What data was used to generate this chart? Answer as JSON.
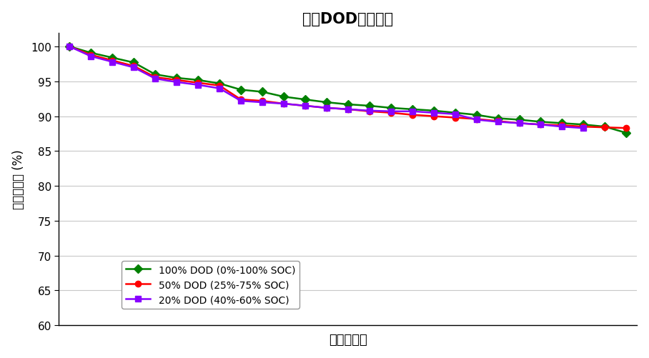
{
  "title": "不同DOD常温循环",
  "xlabel": "总能量输出",
  "ylabel": "容量保持率 (%)",
  "ylim": [
    60,
    102
  ],
  "yticks": [
    60,
    65,
    70,
    75,
    80,
    85,
    90,
    95,
    100
  ],
  "background_color": "#ffffff",
  "grid_color": "#c8c8c8",
  "series": [
    {
      "label": "100% DOD (0%-100% SOC)",
      "color": "#008000",
      "marker": "D",
      "markersize": 6,
      "x": [
        0,
        1,
        2,
        3,
        4,
        5,
        6,
        7,
        8,
        9,
        10,
        11,
        12,
        13,
        14,
        15,
        16,
        17,
        18,
        19,
        20,
        21,
        22,
        23,
        24,
        25,
        26
      ],
      "y": [
        100,
        99.1,
        98.4,
        97.7,
        96.0,
        95.5,
        95.2,
        94.7,
        93.8,
        93.5,
        92.8,
        92.4,
        92.0,
        91.7,
        91.5,
        91.2,
        91.0,
        90.8,
        90.5,
        90.2,
        89.7,
        89.5,
        89.2,
        89.0,
        88.8,
        88.5,
        87.6
      ]
    },
    {
      "label": "50% DOD (25%-75% SOC)",
      "color": "#ff0000",
      "marker": "o",
      "markersize": 6,
      "x": [
        0,
        1,
        2,
        3,
        4,
        5,
        6,
        7,
        8,
        9,
        10,
        11,
        12,
        13,
        14,
        15,
        16,
        17,
        18,
        19,
        20,
        21,
        22,
        23,
        24,
        25,
        26
      ],
      "y": [
        100,
        98.8,
        98.0,
        97.2,
        95.6,
        95.2,
        94.8,
        94.4,
        92.4,
        92.2,
        91.8,
        91.5,
        91.2,
        91.0,
        90.7,
        90.5,
        90.2,
        90.0,
        89.8,
        89.6,
        89.3,
        89.0,
        88.8,
        88.7,
        88.5,
        88.4,
        88.3
      ]
    },
    {
      "label": "20% DOD (40%-60% SOC)",
      "color": "#8800ff",
      "marker": "s",
      "markersize": 6,
      "x": [
        0,
        1,
        2,
        3,
        4,
        5,
        6,
        7,
        8,
        9,
        10,
        11,
        12,
        13,
        14,
        15,
        16,
        17,
        18,
        19,
        20,
        21,
        22,
        23,
        24
      ],
      "y": [
        100,
        98.6,
        97.8,
        97.0,
        95.4,
        94.9,
        94.5,
        94.0,
        92.2,
        92.0,
        91.8,
        91.5,
        91.2,
        91.0,
        90.8,
        90.7,
        90.7,
        90.5,
        90.3,
        89.5,
        89.2,
        89.0,
        88.8,
        88.5,
        88.3
      ]
    }
  ]
}
